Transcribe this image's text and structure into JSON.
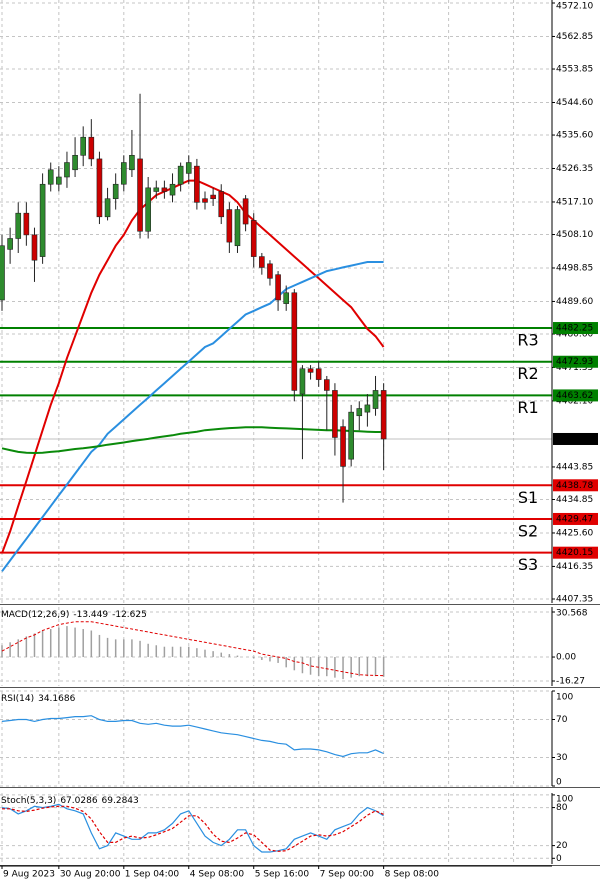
{
  "chart_data": [
    {
      "type": "candlestick",
      "categories": [
        "9 Aug 2023",
        null,
        null,
        null,
        null,
        null,
        null,
        "30 Aug 20:00",
        null,
        null,
        null,
        null,
        null,
        null,
        null,
        "1 Sep 04:00",
        null,
        null,
        null,
        null,
        null,
        null,
        null,
        "4 Sep 08:00",
        null,
        null,
        null,
        null,
        null,
        null,
        null,
        "5 Sep 16:00",
        null,
        null,
        null,
        null,
        null,
        null,
        null,
        "7 Sep 00:00",
        null,
        null,
        null,
        null,
        null,
        null,
        null,
        "8 Sep 08:00"
      ],
      "open": [
        4490,
        4504,
        4507,
        4514,
        4508,
        4502,
        4522,
        4522,
        4524,
        4526,
        4530,
        4535,
        4529,
        4513,
        4518,
        4522,
        4526,
        4529,
        4509,
        4520,
        4521,
        4519,
        4522,
        4525,
        4527,
        4518,
        4519,
        4520,
        4515,
        4505,
        4518,
        4512,
        4502,
        4500,
        4497,
        4489,
        4492,
        4464,
        4471,
        4471,
        4468,
        4465,
        4455,
        4446,
        4458,
        4459,
        4460,
        4465
      ],
      "high": [
        4508,
        4510,
        4517,
        4517,
        4510,
        4525,
        4528,
        4527,
        4531,
        4535,
        4538,
        4540,
        4531,
        4521,
        4525,
        4530,
        4537,
        4547,
        4524,
        4523,
        4523,
        4525,
        4528,
        4530,
        4529,
        4520,
        4521,
        4522,
        4517,
        4516,
        4519,
        4514,
        4503,
        4501,
        4498,
        4494,
        4493,
        4472,
        4472,
        4473,
        4469,
        4467,
        4457,
        4461,
        4462,
        4464,
        4469,
        4467
      ],
      "low": [
        4487,
        4500,
        4503,
        4505,
        4495,
        4500,
        4520,
        4520,
        4521,
        4524,
        4527,
        4527,
        4511,
        4512,
        4515,
        4520,
        4524,
        4507,
        4507,
        4518,
        4518,
        4517,
        4520,
        4522,
        4515,
        4515,
        4516,
        4511,
        4503,
        4503,
        4509,
        4499,
        4497,
        4494,
        4487,
        4487,
        4462,
        4446,
        4468,
        4466,
        4454,
        4447,
        4434,
        4444,
        4454,
        4455,
        4458,
        4443
      ],
      "close": [
        4505,
        4507,
        4514,
        4508,
        4501,
        4522,
        4526,
        4524,
        4528,
        4530,
        4535,
        4529,
        4513,
        4518,
        4522,
        4528,
        4530,
        4509,
        4521,
        4521,
        4520,
        4522,
        4527,
        4528,
        4517,
        4517,
        4518,
        4513,
        4506,
        4515,
        4511,
        4502,
        4499,
        4496,
        4490,
        4492,
        4465,
        4471,
        4470,
        4468,
        4465,
        4452,
        4444,
        4459,
        4460,
        4461,
        4465,
        4451.58
      ],
      "up_color": "#2e8b2e",
      "down_color": "#cc0000",
      "series": [
        {
          "color": "#e00000",
          "values": [
            4420,
            4426,
            4433,
            4440,
            4447,
            4454,
            4461,
            4467,
            4474,
            4480,
            4486,
            4492,
            4497,
            4501,
            4505,
            4508,
            4512,
            4515,
            4517,
            4519,
            4520,
            4521,
            4522,
            4523,
            4523,
            4522,
            4521,
            4520,
            4519,
            4517,
            4514,
            4512,
            4510,
            4508,
            4506,
            4504,
            4502,
            4500,
            4498,
            4496,
            4494,
            4492,
            4490,
            4488,
            4485,
            4482,
            4480,
            4477
          ]
        },
        {
          "color": "#2a8fe0",
          "values": [
            4415,
            4418,
            4421,
            4424,
            4427,
            4430,
            4433,
            4436,
            4439,
            4442,
            4445,
            4448,
            4450,
            4453,
            4455,
            4457,
            4459,
            4461,
            4463,
            4465,
            4467,
            4469,
            4471,
            4473,
            4475,
            4477,
            4478,
            4480,
            4482,
            4484,
            4486,
            4487,
            4488,
            4489,
            4491,
            4493,
            4494,
            4495,
            4496,
            4497,
            4498,
            4498.5,
            4499,
            4499.5,
            4500,
            4500.5,
            4500.5,
            4500.5
          ]
        },
        {
          "color": "#0a8a0a",
          "values": [
            4449,
            4448.5,
            4448,
            4447.8,
            4447.7,
            4447.8,
            4448,
            4448.2,
            4448.5,
            4448.8,
            4449,
            4449.3,
            4449.6,
            4450,
            4450.3,
            4450.6,
            4451,
            4451.3,
            4451.6,
            4452,
            4452.3,
            4452.6,
            4453,
            4453.3,
            4453.6,
            4454,
            4454.2,
            4454.4,
            4454.6,
            4454.7,
            4454.8,
            4454.8,
            4454.8,
            4454.7,
            4454.6,
            4454.5,
            4454.4,
            4454.3,
            4454.2,
            4454.1,
            4454,
            4454,
            4453.9,
            4453.8,
            4453.7,
            4453.6,
            4453.5,
            4453.5
          ]
        }
      ],
      "levels": [
        {
          "name": "R3",
          "value": 4482.25,
          "color": "#008000"
        },
        {
          "name": "R2",
          "value": 4472.93,
          "color": "#008000"
        },
        {
          "name": "R1",
          "value": 4463.62,
          "color": "#008000"
        },
        {
          "name": "S1",
          "value": 4438.78,
          "color": "#e00000"
        },
        {
          "name": "S2",
          "value": 4429.47,
          "color": "#e00000"
        },
        {
          "name": "S3",
          "value": 4420.15,
          "color": "#e00000"
        }
      ],
      "ylim": [
        4406.24,
        4572.93
      ],
      "yticks": [
        {
          "value": 4572.1,
          "label": "4572.10"
        },
        {
          "value": 4562.85,
          "label": "4562.85"
        },
        {
          "value": 4553.85,
          "label": "4553.85"
        },
        {
          "value": 4544.6,
          "label": "4544.60"
        },
        {
          "value": 4535.6,
          "label": "4535.60"
        },
        {
          "value": 4526.35,
          "label": "4526.35"
        },
        {
          "value": 4517.1,
          "label": "4517.10"
        },
        {
          "value": 4508.1,
          "label": "4508.10"
        },
        {
          "value": 4498.85,
          "label": "4498.85"
        },
        {
          "value": 4489.6,
          "label": "4489.60"
        },
        {
          "value": 4480.6,
          "label": "4480.60"
        },
        {
          "value": 4471.35,
          "label": "4471.35"
        },
        {
          "value": 4462.1,
          "label": "4462.10"
        },
        {
          "value": 4443.85,
          "label": "4443.85"
        },
        {
          "value": 4434.85,
          "label": "4434.85"
        },
        {
          "value": 4425.6,
          "label": "4425.60"
        },
        {
          "value": 4416.35,
          "label": "4416.35"
        },
        {
          "value": 4407.35,
          "label": "4407.35"
        }
      ],
      "grid": true
    },
    {
      "type": "macd",
      "title": "MACD(12,26,9)",
      "series": [
        {
          "color": "#a0a0a0",
          "values": [
            8,
            10,
            12,
            14,
            16,
            18,
            19,
            20,
            21,
            20,
            19,
            18,
            15,
            13,
            12,
            12,
            12,
            11,
            9,
            8,
            7,
            7,
            7,
            7,
            6,
            5,
            4,
            3,
            2,
            1,
            0,
            -1,
            -2,
            -3,
            -4,
            -7,
            -9,
            -11,
            -12,
            -13,
            -13,
            -14,
            -15,
            -14,
            -13,
            -13,
            -13,
            -13.449
          ]
        },
        {
          "color": "#e00000",
          "values": [
            4,
            7,
            10,
            13,
            15,
            18,
            20,
            22,
            23,
            24,
            24,
            24,
            23,
            22,
            21,
            20,
            19,
            18,
            17,
            16,
            15,
            14,
            13,
            12,
            11,
            10,
            9,
            8,
            7,
            6,
            5,
            4,
            2,
            1,
            0,
            -1,
            -3,
            -4,
            -6,
            -7,
            -8,
            -9,
            -10,
            -11,
            -12,
            -12.3,
            -12.5,
            -12.625
          ]
        }
      ],
      "ylim": [
        -19.66,
        33.96
      ],
      "yticks": [
        30.568,
        {
          "value": 0,
          "label": "0.00"
        },
        -16.27
      ]
    },
    {
      "type": "line",
      "title": "RSI(14)",
      "series": [
        {
          "color": "#2a8fe0",
          "values": [
            68,
            69,
            70,
            70,
            68,
            70,
            71,
            71,
            72,
            73,
            73,
            74,
            70,
            68,
            68,
            69,
            69,
            66,
            65,
            66,
            64,
            63,
            63,
            64,
            62,
            60,
            58,
            56,
            55,
            54,
            52,
            50,
            48,
            47,
            45,
            44,
            38,
            39,
            39,
            38,
            36,
            33,
            31,
            34,
            35,
            35,
            38,
            34.1686
          ]
        }
      ],
      "ylim": [
        0,
        100
      ],
      "yticks": [
        100,
        70,
        30,
        0
      ]
    },
    {
      "type": "line",
      "title": "Stoch(5,3,3)",
      "series": [
        {
          "color": "#2a8fe0",
          "values": [
            80,
            78,
            70,
            75,
            82,
            80,
            82,
            85,
            78,
            75,
            70,
            40,
            15,
            20,
            40,
            35,
            30,
            30,
            40,
            40,
            45,
            55,
            70,
            75,
            55,
            35,
            25,
            20,
            30,
            45,
            45,
            20,
            10,
            10,
            12,
            15,
            30,
            35,
            40,
            35,
            30,
            45,
            50,
            55,
            70,
            80,
            75,
            67.0286
          ]
        },
        {
          "color": "#e00000",
          "dashed": true,
          "values": [
            78,
            78,
            75,
            74,
            76,
            79,
            81,
            82,
            82,
            79,
            74,
            62,
            42,
            25,
            25,
            32,
            35,
            32,
            33,
            37,
            42,
            47,
            57,
            67,
            67,
            55,
            38,
            27,
            25,
            32,
            40,
            37,
            25,
            13,
            11,
            12,
            19,
            27,
            35,
            37,
            35,
            37,
            42,
            50,
            58,
            68,
            75,
            69.2843
          ]
        }
      ],
      "ylim": [
        -9,
        103
      ],
      "yticks": [
        100,
        80,
        20,
        0
      ]
    }
  ]
}
